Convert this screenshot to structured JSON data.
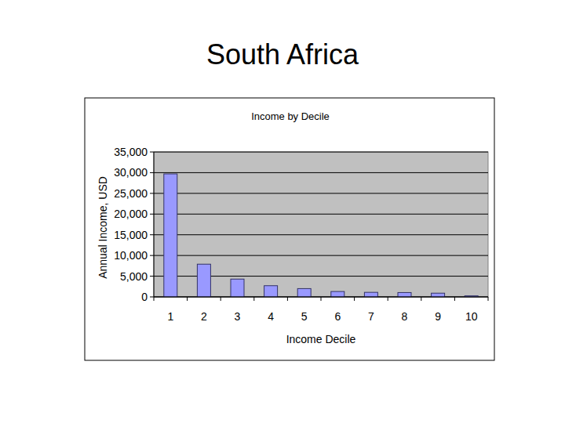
{
  "header": {
    "title": "South Africa"
  },
  "chart_data": {
    "type": "bar",
    "title": "Income by Decile",
    "x_label": "Income Decile",
    "y_label": "Annual Income, USD",
    "categories": [
      "1",
      "2",
      "3",
      "4",
      "5",
      "6",
      "7",
      "8",
      "9",
      "10"
    ],
    "values": [
      29700,
      7900,
      4300,
      2700,
      2000,
      1300,
      1100,
      1050,
      900,
      250
    ],
    "color": "#9999ff",
    "ylim": [
      0,
      35000
    ],
    "yticks": [
      0,
      {
        "value": 5000,
        "label": "5,000"
      },
      {
        "value": 10000,
        "label": "10,000"
      },
      {
        "value": 15000,
        "label": "15,000"
      },
      {
        "value": 20000,
        "label": "20,000"
      },
      {
        "value": 25000,
        "label": "25,000"
      },
      {
        "value": 30000,
        "label": "30,000"
      },
      {
        "value": 35000,
        "label": "35,000"
      }
    ],
    "grid": true
  }
}
